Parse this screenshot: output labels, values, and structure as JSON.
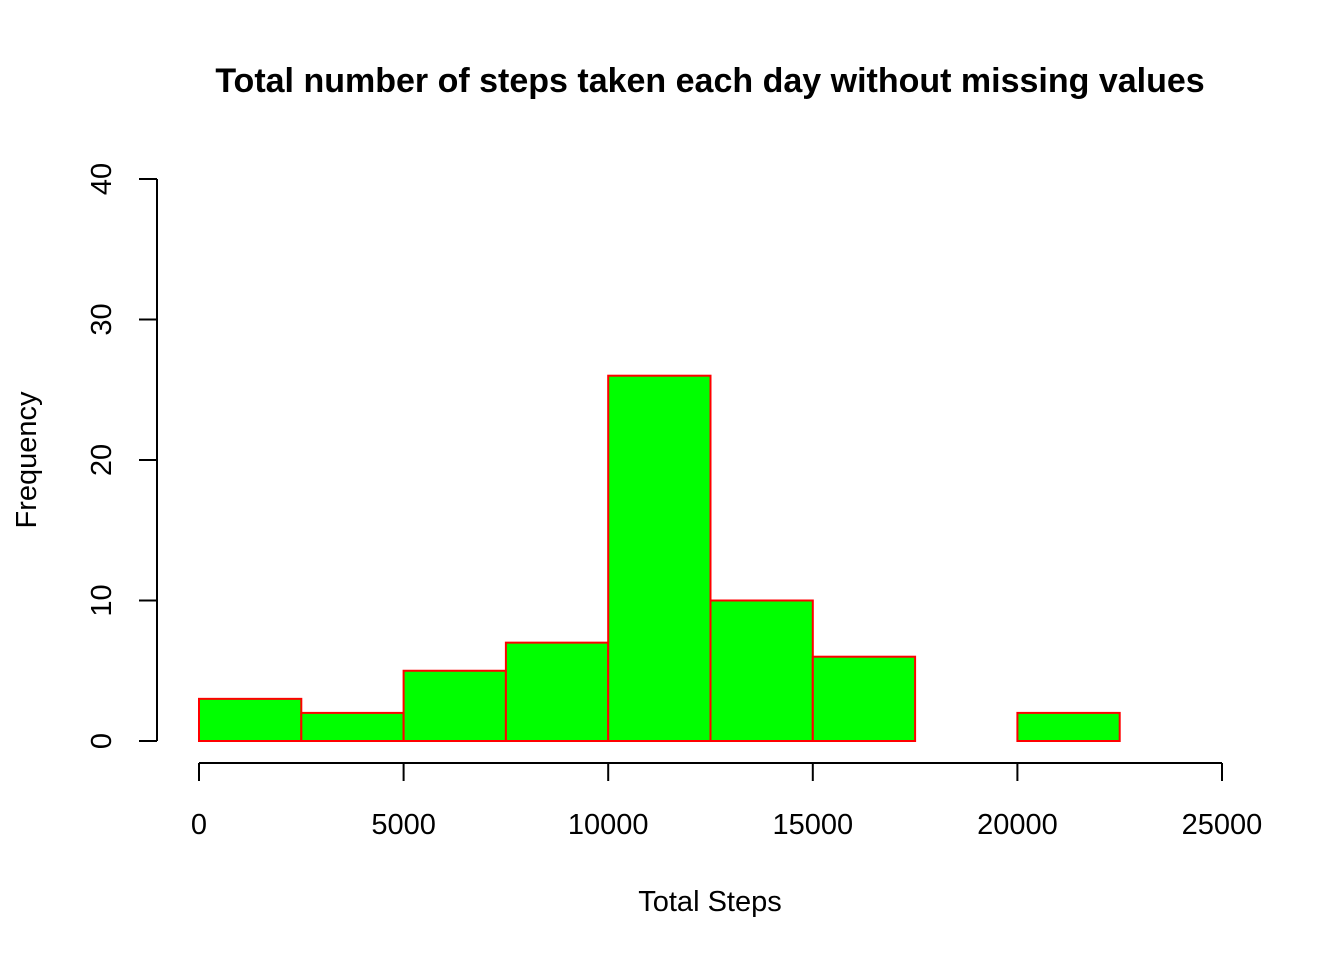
{
  "chart_data": {
    "type": "bar",
    "subtype": "histogram",
    "title": "Total number of steps taken each day without missing values",
    "xlabel": "Total Steps",
    "ylabel": "Frequency",
    "bin_edges": [
      0,
      2500,
      5000,
      7500,
      10000,
      12500,
      15000,
      17500,
      20000,
      22500,
      25000
    ],
    "values": [
      3,
      2,
      5,
      7,
      26,
      10,
      6,
      0,
      2,
      0
    ],
    "xlim": [
      0,
      25000
    ],
    "ylim": [
      0,
      40
    ],
    "xticks": [
      0,
      5000,
      10000,
      15000,
      20000,
      25000
    ],
    "xtick_labels": [
      "0",
      "5000",
      "10000",
      "15000",
      "20000",
      "25000"
    ],
    "yticks": [
      0,
      10,
      20,
      30,
      40
    ],
    "ytick_labels": [
      "0",
      "10",
      "20",
      "30",
      "40"
    ],
    "grid": false,
    "colors": {
      "fill": "#00ff00",
      "border": "#ff0000"
    }
  }
}
